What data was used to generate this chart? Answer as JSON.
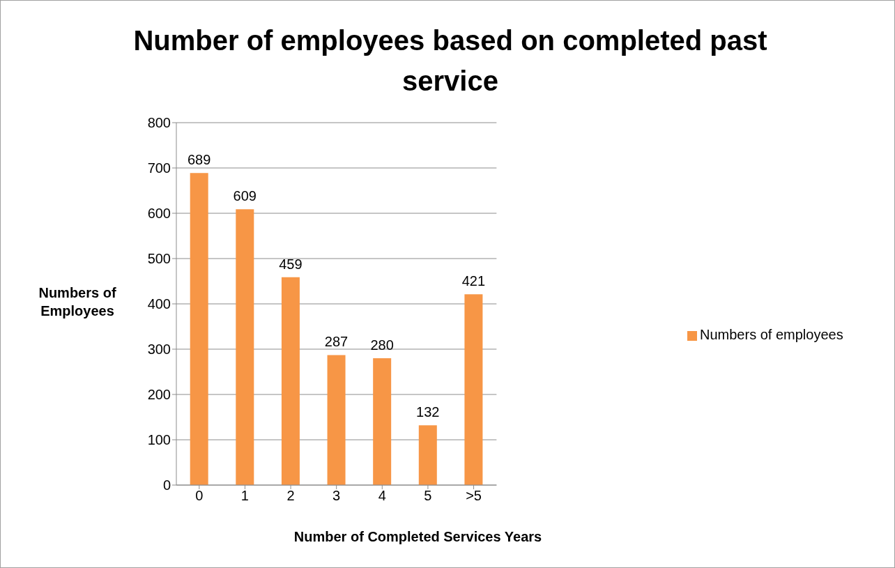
{
  "chart_data": {
    "type": "bar",
    "title": "Number of employees based on completed past service",
    "xlabel": "Number of Completed Services Years",
    "ylabel": "Numbers of Employees",
    "categories": [
      "0",
      "1",
      "2",
      "3",
      "4",
      "5",
      ">5"
    ],
    "series": [
      {
        "name": "Numbers of employees",
        "color": "#f79646",
        "values": [
          689,
          609,
          459,
          287,
          280,
          132,
          421
        ]
      }
    ],
    "ylim": [
      0,
      800
    ],
    "yticks": [
      0,
      100,
      200,
      300,
      400,
      500,
      600,
      700,
      800
    ],
    "grid": "y",
    "legend": "right",
    "data_labels": true
  }
}
